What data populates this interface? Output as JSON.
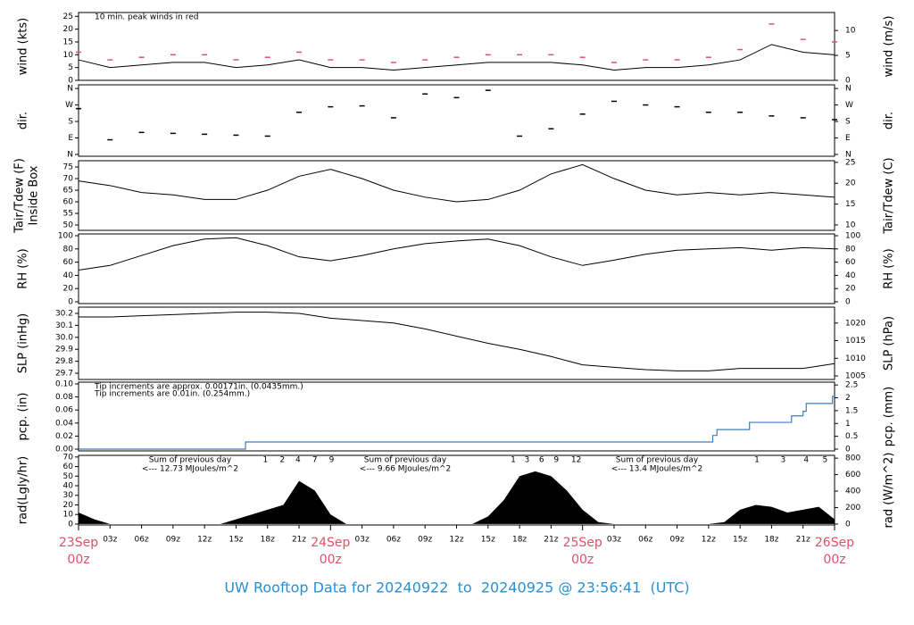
{
  "title": "UW Rooftop Data for 20240922  to  20240925 @ 23:56:41  (UTC)",
  "x_axis": {
    "xlim": [
      0,
      72
    ],
    "xticks": [
      {
        "value": 3,
        "label": "03z"
      },
      {
        "value": 6,
        "label": "06z"
      },
      {
        "value": 9,
        "label": "09z"
      },
      {
        "value": 12,
        "label": "12z"
      },
      {
        "value": 15,
        "label": "15z"
      },
      {
        "value": 18,
        "label": "18z"
      },
      {
        "value": 21,
        "label": "21z"
      },
      {
        "value": 27,
        "label": "03z"
      },
      {
        "value": 30,
        "label": "06z"
      },
      {
        "value": 33,
        "label": "09z"
      },
      {
        "value": 36,
        "label": "12z"
      },
      {
        "value": 39,
        "label": "15z"
      },
      {
        "value": 42,
        "label": "18z"
      },
      {
        "value": 45,
        "label": "21z"
      },
      {
        "value": 51,
        "label": "03z"
      },
      {
        "value": 54,
        "label": "06z"
      },
      {
        "value": 57,
        "label": "09z"
      },
      {
        "value": 60,
        "label": "12z"
      },
      {
        "value": 63,
        "label": "15z"
      },
      {
        "value": 66,
        "label": "18z"
      },
      {
        "value": 69,
        "label": "21z"
      }
    ],
    "date_ticks": [
      {
        "value": 0,
        "label": "23Sep",
        "sub": "00z"
      },
      {
        "value": 24,
        "label": "24Sep",
        "sub": "00z"
      },
      {
        "value": 48,
        "label": "25Sep",
        "sub": "00z"
      },
      {
        "value": 72,
        "label": "26Sep",
        "sub": "00z"
      }
    ]
  },
  "chart_data": [
    {
      "type": "line",
      "ylabel": [
        "wind (kts)"
      ],
      "y2label": "wind (m/s)",
      "ylim": [
        0,
        26.5
      ],
      "yticks": [
        0,
        5,
        10,
        15,
        20,
        25
      ],
      "y2lim": [
        0,
        13.6
      ],
      "y2ticks": [
        0,
        5,
        10
      ],
      "annotations": [
        {
          "text": "10 min. peak winds in red",
          "color": "#e0506a"
        }
      ],
      "x": [
        0,
        3,
        6,
        9,
        12,
        15,
        18,
        21,
        24,
        27,
        30,
        33,
        36,
        39,
        42,
        45,
        48,
        51,
        54,
        57,
        60,
        63,
        66,
        69,
        72
      ],
      "series": [
        {
          "name": "wind",
          "color": "#000000",
          "values": [
            8,
            5,
            6,
            7,
            7,
            5,
            6,
            8,
            5,
            5,
            4,
            5,
            6,
            7,
            7,
            7,
            6,
            4,
            5,
            5,
            6,
            8,
            14,
            11,
            10
          ]
        },
        {
          "name": "peak",
          "color": "#e0506a",
          "style": "dash",
          "values": [
            11,
            8,
            9,
            10,
            10,
            8,
            9,
            11,
            8,
            8,
            7,
            8,
            9,
            10,
            10,
            10,
            9,
            7,
            8,
            8,
            9,
            12,
            22,
            16,
            15
          ]
        }
      ]
    },
    {
      "type": "scatter",
      "ylabel": [
        "dir."
      ],
      "y2label": "dir.",
      "ylim": [
        -10,
        380
      ],
      "yticks": [
        {
          "value": 0,
          "label": "N"
        },
        {
          "value": 90,
          "label": "E"
        },
        {
          "value": 180,
          "label": "S"
        },
        {
          "value": 270,
          "label": "W"
        },
        {
          "value": 360,
          "label": "N"
        }
      ],
      "y2lim": [
        -10,
        380
      ],
      "y2ticks": [
        {
          "value": 0,
          "label": "N"
        },
        {
          "value": 90,
          "label": "E"
        },
        {
          "value": 180,
          "label": "S"
        },
        {
          "value": 270,
          "label": "W"
        },
        {
          "value": 360,
          "label": "N"
        }
      ],
      "x": [
        0,
        3,
        6,
        9,
        12,
        15,
        18,
        21,
        24,
        27,
        30,
        33,
        36,
        39,
        42,
        45,
        48,
        51,
        54,
        57,
        60,
        63,
        66,
        69,
        72
      ],
      "series": [
        {
          "name": "dir",
          "color": "#000000",
          "values": [
            250,
            80,
            120,
            115,
            110,
            105,
            100,
            230,
            260,
            265,
            200,
            330,
            310,
            350,
            100,
            140,
            220,
            290,
            270,
            260,
            230,
            230,
            210,
            200,
            190
          ]
        }
      ]
    },
    {
      "type": "line",
      "ylabel": [
        "Tair/Tdew (F)",
        "Inside Box"
      ],
      "y2label": "Tair/Tdew (C)",
      "ylim": [
        47.7,
        77.7
      ],
      "yticks": [
        50,
        55,
        60,
        65,
        70,
        75
      ],
      "y2lim": [
        8.7,
        25.4
      ],
      "y2ticks": [
        10,
        15,
        20,
        25
      ],
      "x": [
        0,
        3,
        6,
        9,
        12,
        15,
        18,
        21,
        24,
        27,
        30,
        33,
        36,
        39,
        42,
        45,
        48,
        51,
        54,
        57,
        60,
        63,
        66,
        69,
        72
      ],
      "series": [
        {
          "name": "temp",
          "color": "#000000",
          "values": [
            69,
            67,
            64,
            63,
            61,
            61,
            65,
            71,
            74,
            70,
            65,
            62,
            60,
            61,
            65,
            72,
            76,
            70,
            65,
            63,
            64,
            63,
            64,
            63,
            62
          ]
        }
      ]
    },
    {
      "type": "line",
      "ylabel": [
        "RH (%)"
      ],
      "y2label": "RH (%)",
      "ylim": [
        -2.7,
        102.7
      ],
      "yticks": [
        0,
        20,
        40,
        60,
        80,
        100
      ],
      "y2lim": [
        -2.7,
        102.7
      ],
      "y2ticks": [
        0,
        20,
        40,
        60,
        80,
        100
      ],
      "x": [
        0,
        3,
        6,
        9,
        12,
        15,
        18,
        21,
        24,
        27,
        30,
        33,
        36,
        39,
        42,
        45,
        48,
        51,
        54,
        57,
        60,
        63,
        66,
        69,
        72
      ],
      "series": [
        {
          "name": "rh",
          "color": "#000000",
          "values": [
            48,
            55,
            70,
            85,
            95,
            97,
            85,
            68,
            62,
            70,
            80,
            88,
            92,
            95,
            85,
            68,
            55,
            63,
            72,
            78,
            80,
            82,
            78,
            82,
            80
          ]
        }
      ]
    },
    {
      "type": "line",
      "ylabel": [
        "SLP (inHg)"
      ],
      "y2label": "SLP (hPa)",
      "ylim": [
        29.648,
        30.252
      ],
      "yticks": [
        29.7,
        29.8,
        29.9,
        {
          "value": 30,
          "label": "30.0"
        },
        30.1,
        30.2
      ],
      "y2lim": [
        1004,
        1024.5
      ],
      "y2ticks": [
        1005,
        1010,
        1015,
        1020
      ],
      "x": [
        0,
        3,
        6,
        9,
        12,
        15,
        18,
        21,
        24,
        27,
        30,
        33,
        36,
        39,
        42,
        45,
        48,
        51,
        54,
        57,
        60,
        63,
        66,
        69,
        72
      ],
      "series": [
        {
          "name": "slp",
          "color": "#000000",
          "values": [
            30.17,
            30.17,
            30.18,
            30.19,
            30.2,
            30.21,
            30.21,
            30.2,
            30.16,
            30.14,
            30.12,
            30.07,
            30.01,
            29.95,
            29.9,
            29.84,
            29.77,
            29.75,
            29.73,
            29.72,
            29.72,
            29.74,
            29.74,
            29.74,
            29.78
          ]
        }
      ]
    },
    {
      "type": "step",
      "ylabel": [
        "pcp. (in)"
      ],
      "y2label": "pcp. (mm)",
      "ylim": [
        -0.0027,
        0.1027
      ],
      "yticks": [
        {
          "value": 0,
          "label": "0.00"
        },
        {
          "value": 0.02,
          "label": "0.02"
        },
        {
          "value": 0.04,
          "label": "0.04"
        },
        {
          "value": 0.06,
          "label": "0.06"
        },
        {
          "value": 0.08,
          "label": "0.08"
        },
        {
          "value": 0.1,
          "label": "0.10"
        }
      ],
      "y2lim": [
        -0.069,
        2.609
      ],
      "y2ticks": [
        0,
        0.5,
        1,
        1.5,
        2,
        2.5
      ],
      "annotations": [
        {
          "text": "Tip increments are approx. 0.00171in. (0.0435mm.)",
          "color": "#e0506a"
        },
        {
          "text": "Tip increments are 0.01in. (0.254mm.)",
          "color": "#2a8fd0"
        }
      ],
      "x": [
        0,
        15.9,
        60.4,
        60.8,
        63.9,
        67.9,
        69,
        69.3,
        71.8,
        72
      ],
      "series": [
        {
          "name": "pcp",
          "color": "#3a7fc0",
          "values": [
            0,
            0.011,
            0.021,
            0.03,
            0.041,
            0.051,
            0.058,
            0.07,
            0.081,
            0.081
          ]
        }
      ]
    },
    {
      "type": "area",
      "ylabel": [
        "rad(Lgly/hr)"
      ],
      "y2label": "rad (W/m^2)",
      "ylim": [
        -1,
        71.7
      ],
      "yticks": [
        0,
        10,
        20,
        30,
        40,
        50,
        60,
        70
      ],
      "y2lim": [
        -11.6,
        834
      ],
      "y2ticks": [
        0,
        200,
        400,
        600,
        800
      ],
      "annotations": [
        {
          "text": "Sum of previous day",
          "color": "#9b30d0"
        },
        {
          "text": "<--- 12.73 MJoules/m^2",
          "color": "#9b30d0"
        },
        {
          "text": "Sum of previous day",
          "color": "#9b30d0"
        },
        {
          "text": "<--- 9.66 MJoules/m^2",
          "color": "#9b30d0"
        },
        {
          "text": "Sum of previous day",
          "color": "#9b30d0"
        },
        {
          "text": "<--- 13.4 MJoules/m^2",
          "color": "#9b30d0"
        }
      ],
      "markers": [
        {
          "x": 17.8,
          "label": "1"
        },
        {
          "x": 19.4,
          "label": "2"
        },
        {
          "x": 20.9,
          "label": "4"
        },
        {
          "x": 22.5,
          "label": "7"
        },
        {
          "x": 24.1,
          "label": "9"
        },
        {
          "x": 41.4,
          "label": "1"
        },
        {
          "x": 42.7,
          "label": "3"
        },
        {
          "x": 44.1,
          "label": "6"
        },
        {
          "x": 45.5,
          "label": "9"
        },
        {
          "x": 47.4,
          "label": "12"
        },
        {
          "x": 64.6,
          "label": "1"
        },
        {
          "x": 67.1,
          "label": "3"
        },
        {
          "x": 69.3,
          "label": "4"
        },
        {
          "x": 71.1,
          "label": "5"
        }
      ],
      "x": [
        0,
        1.5,
        3,
        4.5,
        6,
        7.5,
        9,
        10.5,
        12,
        13.5,
        15,
        16.5,
        18,
        19.5,
        21,
        22.5,
        24,
        25.5,
        27,
        28.5,
        30,
        31.5,
        33,
        34.5,
        36,
        37.5,
        39,
        40.5,
        42,
        43.5,
        45,
        46.5,
        48,
        49.5,
        51,
        52.5,
        54,
        55.5,
        57,
        58.5,
        60,
        61.5,
        63,
        64.5,
        66,
        67.5,
        69,
        70.5,
        72
      ],
      "series": [
        {
          "name": "rad",
          "color": "#000000",
          "values": [
            12,
            5,
            0,
            0,
            0,
            0,
            0,
            0,
            0,
            0,
            5,
            10,
            15,
            20,
            45,
            35,
            10,
            0,
            0,
            0,
            0,
            0,
            0,
            0,
            0,
            0,
            8,
            25,
            50,
            55,
            50,
            35,
            15,
            2,
            0,
            0,
            0,
            0,
            0,
            0,
            0,
            2,
            15,
            20,
            18,
            12,
            15,
            18,
            5
          ]
        }
      ]
    }
  ]
}
